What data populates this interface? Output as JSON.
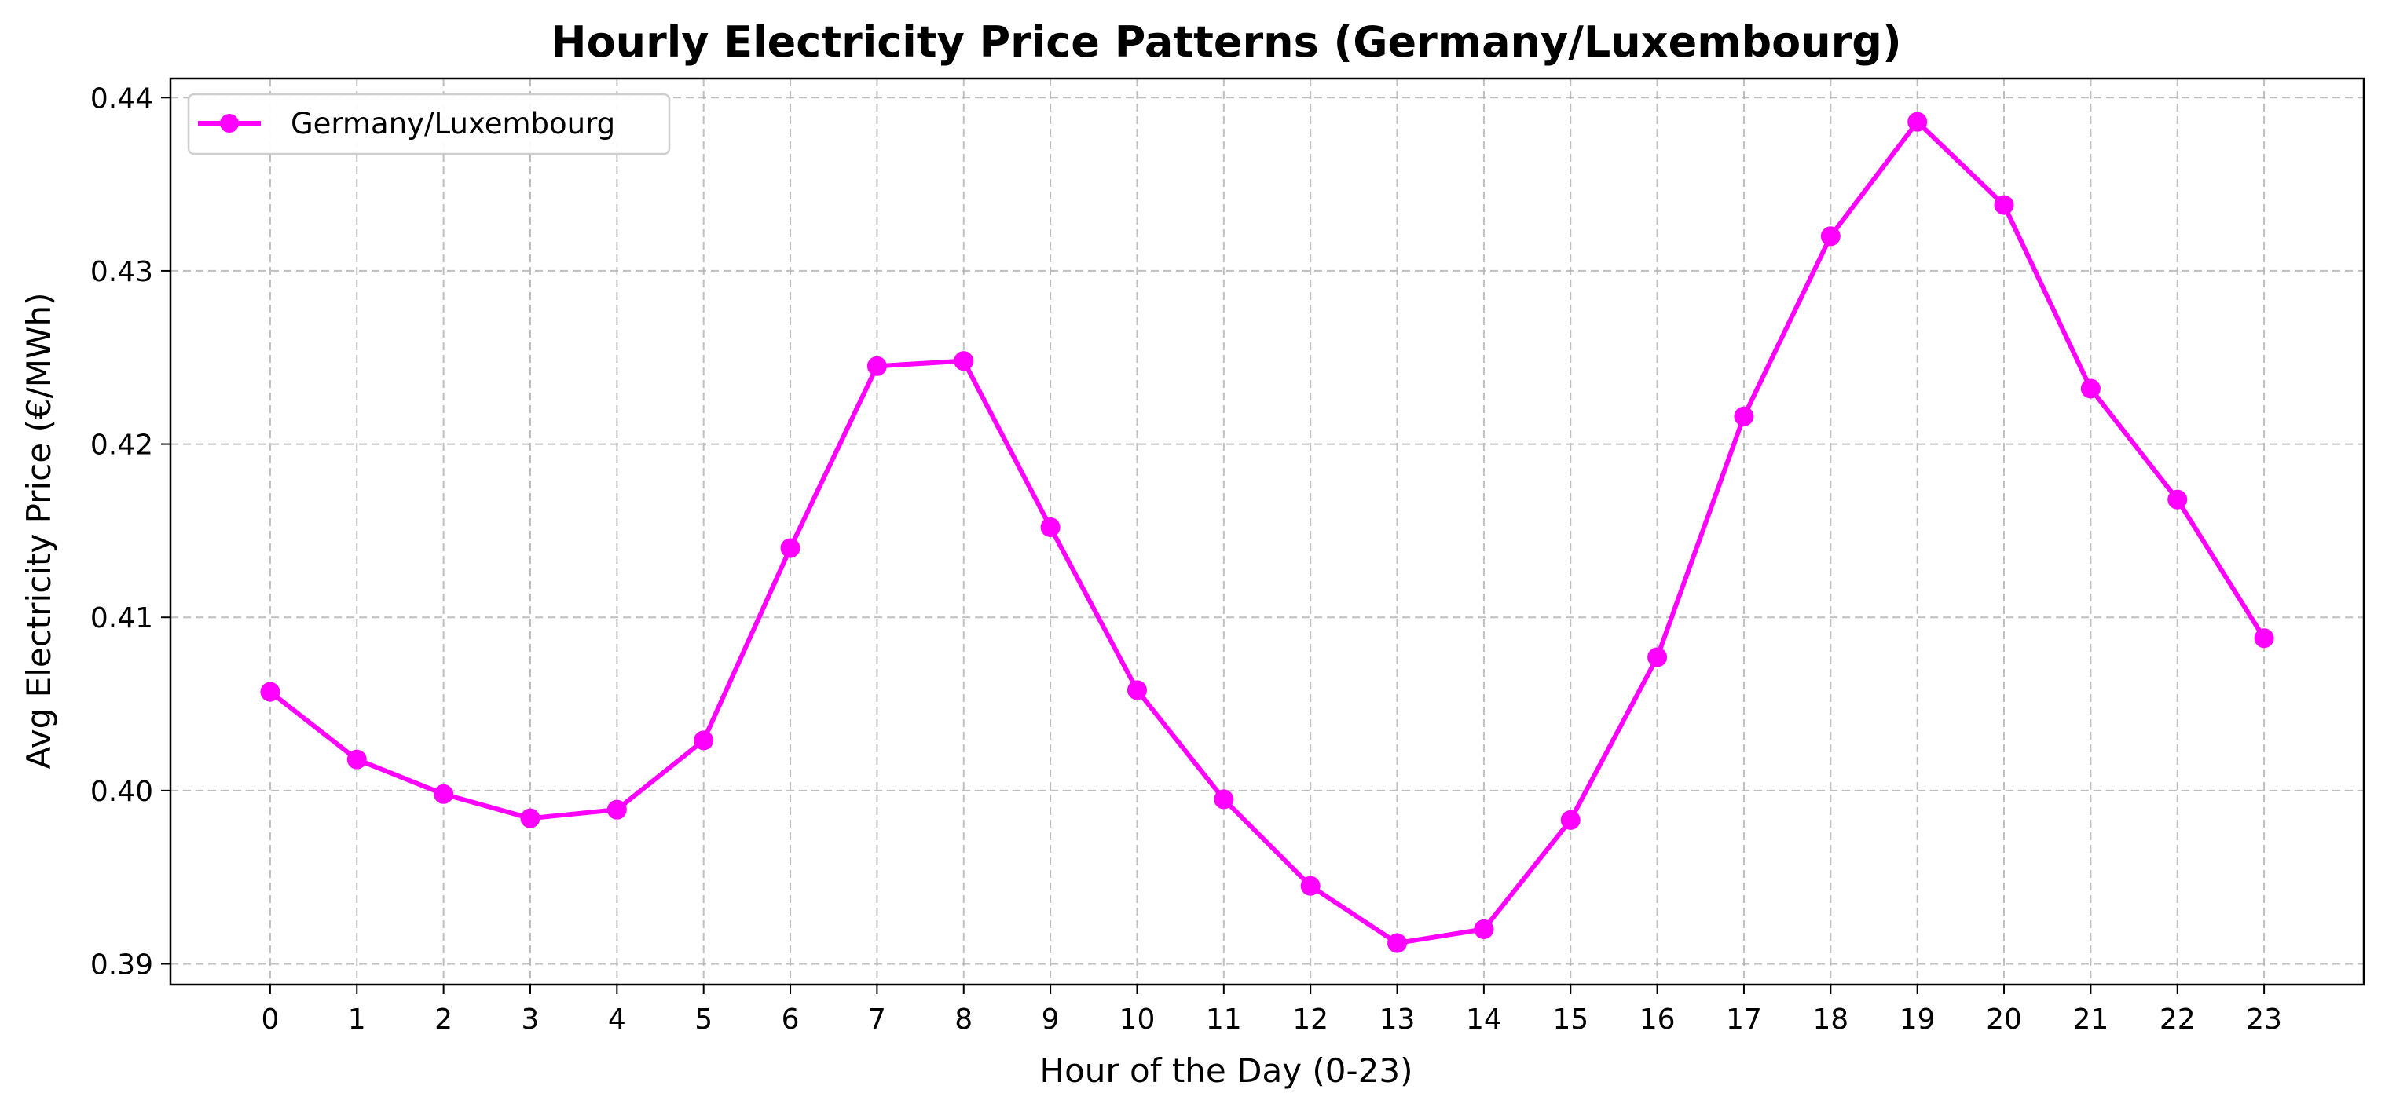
{
  "chart_data": {
    "type": "line",
    "title": "Hourly Electricity Price Patterns (Germany/Luxembourg)",
    "xlabel": "Hour of the Day (0-23)",
    "ylabel": "Avg Electricity Price (€/MWh)",
    "x": [
      0,
      1,
      2,
      3,
      4,
      5,
      6,
      7,
      8,
      9,
      10,
      11,
      12,
      13,
      14,
      15,
      16,
      17,
      18,
      19,
      20,
      21,
      22,
      23
    ],
    "xticks": [
      "0",
      "1",
      "2",
      "3",
      "4",
      "5",
      "6",
      "7",
      "8",
      "9",
      "10",
      "11",
      "12",
      "13",
      "14",
      "15",
      "16",
      "17",
      "18",
      "19",
      "20",
      "21",
      "22",
      "23"
    ],
    "xlim": [
      -1.15,
      24.15
    ],
    "ylim": [
      0.3888,
      0.4411
    ],
    "yticks": [
      0.39,
      0.4,
      0.41,
      0.42,
      0.43,
      0.44
    ],
    "ytick_labels": [
      "0.39",
      "0.40",
      "0.41",
      "0.42",
      "0.43",
      "0.44"
    ],
    "grid": true,
    "legend_position": "top-left",
    "series": [
      {
        "name": "Germany/Luxembourg",
        "color": "#ff00ff",
        "marker": "circle",
        "values": [
          0.4057,
          0.4018,
          0.3998,
          0.3984,
          0.3989,
          0.4029,
          0.414,
          0.4245,
          0.4248,
          0.4152,
          0.4058,
          0.3995,
          0.3945,
          0.3912,
          0.392,
          0.3983,
          0.4077,
          0.4216,
          0.432,
          0.4386,
          0.4338,
          0.4232,
          0.4168,
          0.4088
        ]
      }
    ]
  }
}
